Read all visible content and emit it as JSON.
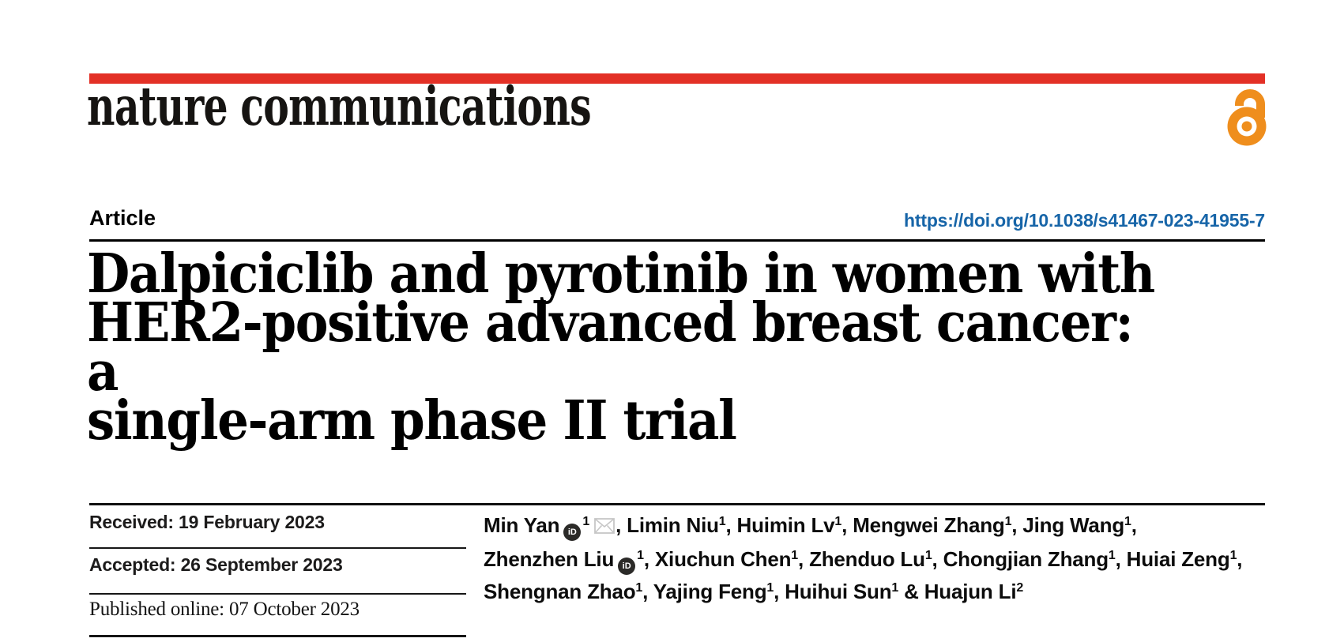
{
  "brand": {
    "logo_text": "nature communications",
    "red_bar_color": "#e33026",
    "open_access_icon": "open-access-lock-icon",
    "open_access_color": "#ef8e1d"
  },
  "article": {
    "type_label": "Article",
    "doi_url": "https://doi.org/10.1038/s41467-023-41955-7",
    "doi_color": "#1765a8",
    "title": "Dalpiciclib and pyrotinib in women with\nHER2-positive advanced breast cancer: a\nsingle-arm phase II trial"
  },
  "history": {
    "received": "Received: 19 February 2023",
    "accepted": "Accepted: 26 September 2023",
    "published": "Published online: 07 October 2023"
  },
  "authors": {
    "lines": [
      [
        {
          "name": "Min Yan",
          "orcid": true,
          "sup": "1",
          "email": true,
          "sep": ", "
        },
        {
          "name": "Limin Niu",
          "sup": "1",
          "sep": ", "
        },
        {
          "name": "Huimin Lv",
          "sup": "1",
          "sep": ", "
        },
        {
          "name": "Mengwei Zhang",
          "sup": "1",
          "sep": ", "
        },
        {
          "name": "Jing Wang",
          "sup": "1",
          "sep": ","
        }
      ],
      [
        {
          "name": "Zhenzhen Liu",
          "orcid": true,
          "sup": "1",
          "sep": ", "
        },
        {
          "name": "Xiuchun Chen",
          "sup": "1",
          "sep": ", "
        },
        {
          "name": "Zhenduo Lu",
          "sup": "1",
          "sep": ", "
        },
        {
          "name": "Chongjian Zhang",
          "sup": "1",
          "sep": ", "
        },
        {
          "name": "Huiai Zeng",
          "sup": "1",
          "sep": ","
        }
      ],
      [
        {
          "name": "Shengnan Zhao",
          "sup": "1",
          "sep": ", "
        },
        {
          "name": "Yajing Feng",
          "sup": "1",
          "sep": ", "
        },
        {
          "name": "Huihui Sun",
          "sup": "1",
          "sep": " & "
        },
        {
          "name": "Huajun Li",
          "sup": "2",
          "sep": ""
        }
      ]
    ],
    "orcid_icon_label": "iD"
  }
}
